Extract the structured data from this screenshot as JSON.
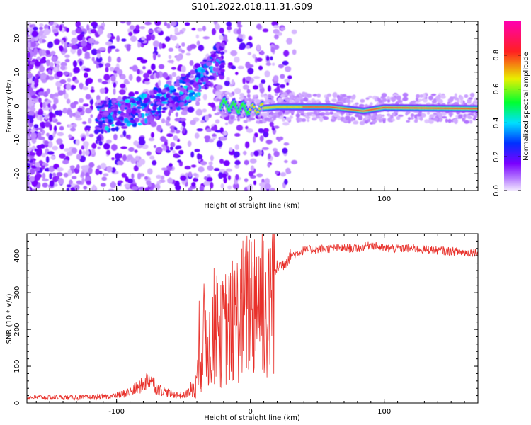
{
  "title": "S101.2022.018.11.31.G09",
  "chart_data": [
    {
      "type": "heatmap",
      "title": "S101.2022.018.11.31.G09",
      "xlabel": "Height of straight line (km)",
      "ylabel": "Frequency (Hz)",
      "xlim": [
        -167,
        170
      ],
      "ylim": [
        -25,
        25
      ],
      "x_ticks": [
        -100,
        0,
        100
      ],
      "x_tick_labels": [
        "-100",
        "0",
        "100"
      ],
      "y_ticks": [
        -20,
        -10,
        0,
        10,
        20
      ],
      "y_tick_labels": [
        "-20",
        "-10",
        "0",
        "10",
        "20"
      ],
      "colorbar": {
        "label": "Normalized spectral amplitude",
        "range": [
          0,
          1
        ],
        "ticks": [
          0.0,
          0.2,
          0.4,
          0.6,
          0.8
        ],
        "tick_labels": [
          "0.0",
          "0.2",
          "0.4",
          "0.6",
          "0.8"
        ],
        "colors": [
          "#f2e8ff",
          "#7a00ff",
          "#0030ff",
          "#00e0ff",
          "#00ff30",
          "#e8f000",
          "#ff2020",
          "#ff00b0"
        ]
      },
      "ridge": [
        {
          "x": -20,
          "f": 0.5
        },
        {
          "x": -10,
          "f": -0.5
        },
        {
          "x": 0,
          "f": -1
        },
        {
          "x": 20,
          "f": -0.3
        },
        {
          "x": 60,
          "f": -0.3
        },
        {
          "x": 85,
          "f": -1.5
        },
        {
          "x": 100,
          "f": -0.5
        },
        {
          "x": 170,
          "f": -0.8
        }
      ],
      "descending_band": [
        {
          "x": -110,
          "f": -3
        },
        {
          "x": -80,
          "f": -1
        },
        {
          "x": -60,
          "f": 2
        },
        {
          "x": -45,
          "f": 6
        },
        {
          "x": -30,
          "f": 10
        },
        {
          "x": -25,
          "f": 14
        }
      ]
    },
    {
      "type": "line",
      "title": "",
      "xlabel": "Height of straight line (km)",
      "ylabel": "SNR (10 * v/v)",
      "xlim": [
        -167,
        170
      ],
      "ylim": [
        0,
        460
      ],
      "x_ticks": [
        -100,
        0,
        100
      ],
      "x_tick_labels": [
        "-100",
        "0",
        "100"
      ],
      "y_ticks": [
        0,
        100,
        200,
        300,
        400
      ],
      "y_tick_labels": [
        "0",
        "100",
        "200",
        "300",
        "400"
      ],
      "color": "#e8302a",
      "series": [
        {
          "name": "SNR",
          "x": [
            -167,
            -140,
            -120,
            -100,
            -90,
            -80,
            -75,
            -70,
            -60,
            -50,
            -42,
            -38,
            -34,
            -30,
            -26,
            -22,
            -18,
            -14,
            -10,
            -6,
            -2,
            2,
            6,
            10,
            12,
            14,
            16,
            18,
            20,
            25,
            30,
            40,
            60,
            80,
            90,
            100,
            120,
            140,
            160,
            170
          ],
          "y": [
            15,
            15,
            15,
            20,
            30,
            50,
            70,
            40,
            25,
            20,
            40,
            100,
            200,
            150,
            230,
            180,
            210,
            200,
            230,
            250,
            270,
            290,
            300,
            320,
            200,
            250,
            330,
            350,
            370,
            380,
            400,
            415,
            420,
            420,
            430,
            420,
            420,
            415,
            410,
            410
          ]
        }
      ]
    }
  ]
}
